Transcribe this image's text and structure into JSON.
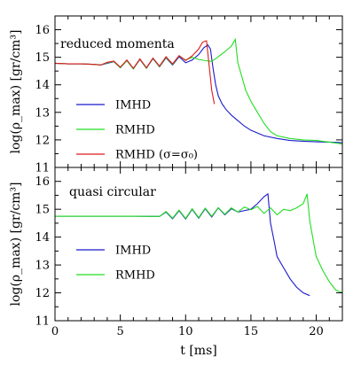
{
  "chart_data": [
    {
      "type": "line",
      "title": "reduced momenta",
      "xlabel": "t [ms]",
      "ylabel": "log(ρ_max) [gr/cm³]",
      "xlim": [
        0,
        22
      ],
      "ylim": [
        11,
        16.5
      ],
      "x_ticks": [
        "0",
        "5",
        "10",
        "15",
        "20"
      ],
      "y_ticks": [
        "11",
        "12",
        "13",
        "14",
        "15",
        "16"
      ],
      "show_x_tick_labels": false,
      "legend_placement": "bottom-left",
      "series": [
        {
          "name": "IMHD",
          "color": "#1a1acc",
          "x": [
            0,
            1,
            2,
            3,
            3.5,
            4,
            4.5,
            5,
            5.5,
            6,
            6.5,
            7,
            7.5,
            8,
            8.5,
            9,
            9.5,
            10,
            10.5,
            11,
            11.4,
            11.7,
            11.9,
            12.1,
            12.3,
            12.5,
            12.8,
            13.1,
            13.5,
            14,
            14.5,
            15,
            15.5,
            16,
            17,
            18,
            19,
            20,
            21,
            22
          ],
          "y": [
            14.78,
            14.76,
            14.76,
            14.74,
            14.72,
            14.78,
            14.84,
            14.62,
            14.88,
            14.58,
            14.92,
            14.6,
            14.95,
            14.65,
            14.98,
            14.72,
            15.02,
            14.8,
            14.9,
            15.1,
            15.35,
            15.45,
            15.3,
            14.6,
            14.0,
            13.6,
            13.3,
            13.1,
            12.9,
            12.7,
            12.5,
            12.35,
            12.25,
            12.15,
            12.05,
            11.98,
            11.95,
            11.93,
            11.92,
            11.9
          ]
        },
        {
          "name": "RMHD",
          "color": "#22dd22",
          "x": [
            0,
            1,
            2,
            3,
            3.5,
            4,
            4.5,
            5,
            5.5,
            6,
            6.5,
            7,
            7.5,
            8,
            8.5,
            9,
            9.5,
            10,
            10.5,
            11,
            11.5,
            12,
            12.5,
            13,
            13.5,
            13.8,
            14,
            14.3,
            14.6,
            15,
            15.5,
            16,
            16.5,
            17,
            18,
            19,
            20,
            21,
            22
          ],
          "y": [
            14.78,
            14.76,
            14.76,
            14.74,
            14.72,
            14.8,
            14.85,
            14.62,
            14.88,
            14.58,
            14.93,
            14.6,
            14.96,
            14.66,
            15.0,
            14.74,
            15.05,
            14.9,
            15.0,
            14.92,
            14.88,
            14.85,
            15.02,
            15.2,
            15.4,
            15.65,
            14.8,
            14.3,
            13.8,
            13.4,
            13.0,
            12.6,
            12.3,
            12.15,
            12.05,
            12.0,
            11.98,
            11.92,
            11.85
          ]
        },
        {
          "name": "RMHD (σ=σ₀)",
          "color": "#dd1a1a",
          "x": [
            0,
            1,
            2,
            3,
            3.5,
            4,
            4.5,
            5,
            5.5,
            6,
            6.5,
            7,
            7.5,
            8,
            8.5,
            9,
            9.5,
            10,
            10.5,
            11,
            11.3,
            11.6,
            11.8,
            12.0,
            12.2
          ],
          "y": [
            14.78,
            14.76,
            14.76,
            14.74,
            14.72,
            14.82,
            14.86,
            14.64,
            14.9,
            14.6,
            14.94,
            14.62,
            14.97,
            14.68,
            15.02,
            14.76,
            15.06,
            14.88,
            15.05,
            15.3,
            15.55,
            15.6,
            14.7,
            13.8,
            13.3
          ]
        }
      ]
    },
    {
      "type": "line",
      "title": "quasi circular",
      "xlabel": "t [ms]",
      "ylabel": "log(ρ_max) [gr/cm³]",
      "xlim": [
        0,
        22
      ],
      "ylim": [
        11,
        16.5
      ],
      "x_ticks": [
        "0",
        "5",
        "10",
        "15",
        "20"
      ],
      "y_ticks": [
        "11",
        "12",
        "13",
        "14",
        "15",
        "16"
      ],
      "show_x_tick_labels": true,
      "legend_placement": "bottom-left",
      "series": [
        {
          "name": "IMHD",
          "color": "#1a1acc",
          "x": [
            0,
            2,
            4,
            6,
            8,
            8.5,
            9,
            9.5,
            10,
            10.5,
            11,
            11.5,
            12,
            12.5,
            13,
            13.5,
            14,
            14.5,
            15,
            15.5,
            16,
            16.3,
            16.5,
            16.8,
            17,
            17.5,
            18,
            18.5,
            19,
            19.5
          ],
          "y": [
            14.75,
            14.75,
            14.75,
            14.75,
            14.74,
            14.9,
            14.66,
            14.95,
            14.65,
            15.0,
            14.68,
            15.02,
            14.72,
            15.05,
            14.8,
            15.02,
            14.9,
            14.95,
            15.0,
            15.2,
            15.45,
            15.55,
            14.5,
            13.8,
            13.3,
            12.9,
            12.5,
            12.2,
            12.0,
            11.9
          ]
        },
        {
          "name": "RMHD",
          "color": "#22dd22",
          "x": [
            0,
            2,
            4,
            6,
            8,
            8.5,
            9,
            9.5,
            10,
            10.5,
            11,
            11.5,
            12,
            12.5,
            13,
            13.5,
            14,
            14.5,
            15,
            15.5,
            16,
            16.5,
            17,
            17.5,
            18,
            18.5,
            19,
            19.3,
            19.5,
            19.8,
            20,
            20.5,
            21,
            21.5,
            22
          ],
          "y": [
            14.75,
            14.75,
            14.75,
            14.75,
            14.74,
            14.92,
            14.68,
            14.97,
            14.67,
            15.02,
            14.7,
            15.04,
            14.75,
            15.06,
            14.82,
            15.05,
            14.9,
            15.08,
            14.98,
            15.1,
            14.85,
            15.05,
            14.8,
            15.0,
            14.95,
            15.05,
            15.2,
            15.55,
            14.6,
            13.8,
            13.3,
            12.8,
            12.4,
            12.1,
            12.0
          ]
        }
      ]
    }
  ]
}
